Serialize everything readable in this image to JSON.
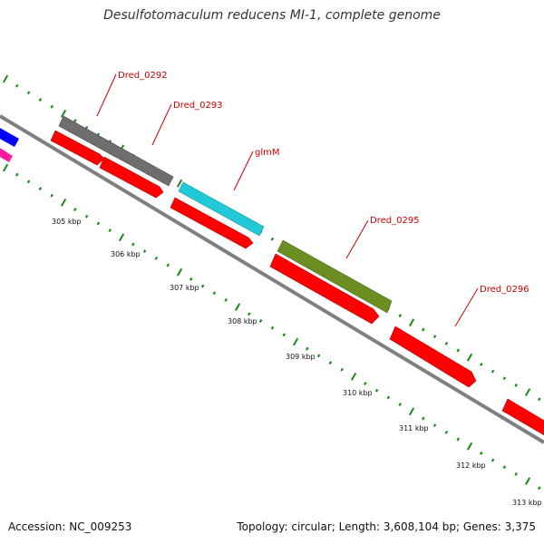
{
  "title": "Desulfotomaculum reducens MI-1, complete genome",
  "footer": {
    "accession_label": "Accession: NC_009253",
    "topology_label": "Topology: circular; Length: 3,608,104 bp; Genes: 3,375"
  },
  "colors": {
    "backbone": "#808080",
    "tick": "#1a8a1a",
    "gene_label": "#cc0000",
    "cds": "#ff0000",
    "gene_blue": "#0000ff",
    "gene_magenta": "#ff1aa0",
    "gene_gray": "#6e6e6e",
    "gene_cyan": "#20c8d8",
    "gene_olive": "#6b8e23"
  },
  "scale": {
    "unit": "kbp",
    "ticks": [
      "305 kbp",
      "306 kbp",
      "307 kbp",
      "308 kbp",
      "309 kbp",
      "310 kbp",
      "311 kbp",
      "312 kbp",
      "313 kbp"
    ]
  },
  "genes": [
    {
      "label": "Dred_0292",
      "color_key": "gene_gray"
    },
    {
      "label": "Dred_0293",
      "color_key": "cds"
    },
    {
      "label": "glmM",
      "color_key": "gene_cyan"
    },
    {
      "label": "Dred_0295",
      "color_key": "gene_olive"
    },
    {
      "label": "Dred_0296",
      "color_key": "cds"
    }
  ]
}
